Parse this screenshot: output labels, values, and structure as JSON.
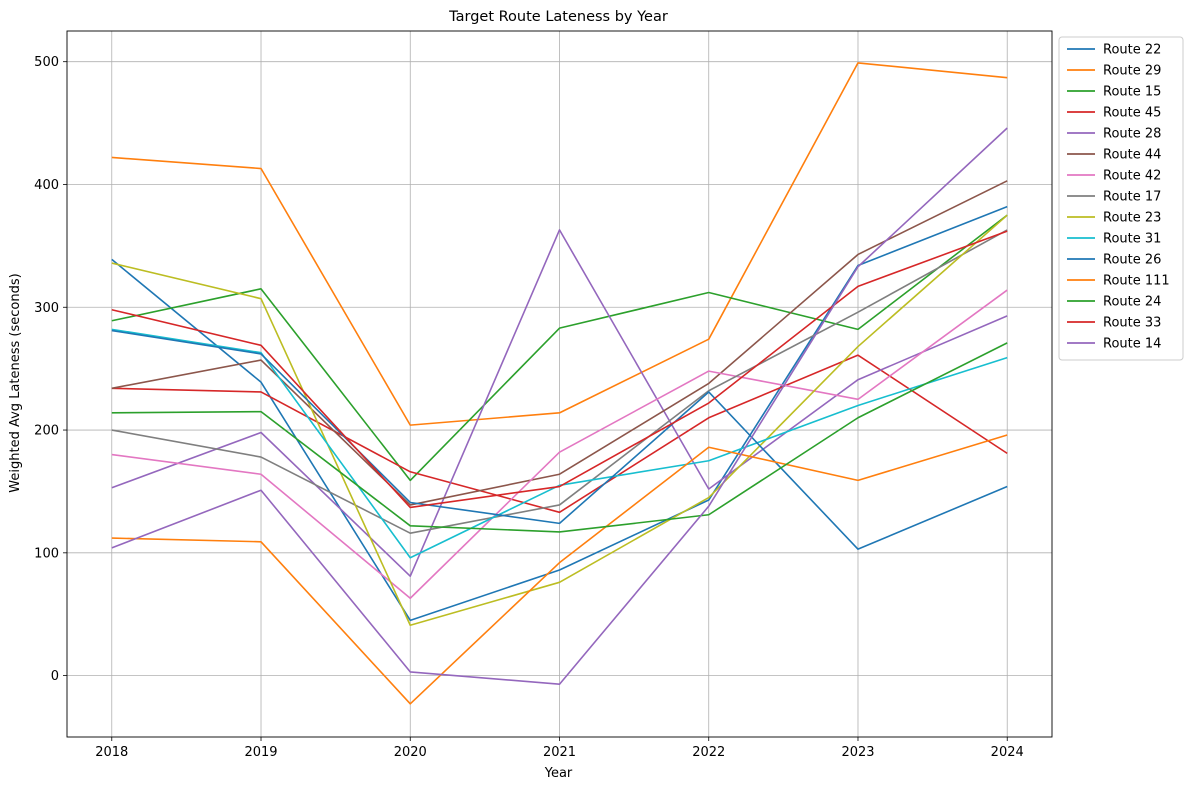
{
  "chart_data": {
    "type": "line",
    "title": "Target Route Lateness by Year",
    "xlabel": "Year",
    "ylabel": "Weighted Avg Lateness (seconds)",
    "x": [
      "2018",
      "2019",
      "2020",
      "2021",
      "2022",
      "2023",
      "2024"
    ],
    "xlim": [
      2017.7,
      2024.3
    ],
    "ylim": [
      -50,
      525
    ],
    "yticks": [
      0,
      100,
      200,
      300,
      400,
      500
    ],
    "grid": true,
    "legend_position": "outside-right-top",
    "series": [
      {
        "name": "Route 22",
        "color": "#1f77b4",
        "values": [
          339,
          239,
          45,
          86,
          143,
          334,
          382
        ]
      },
      {
        "name": "Route 29",
        "color": "#ff7f0e",
        "values": [
          422,
          413,
          204,
          214,
          274,
          499,
          487
        ]
      },
      {
        "name": "Route 15",
        "color": "#2ca02c",
        "values": [
          289,
          315,
          159,
          283,
          312,
          282,
          375
        ]
      },
      {
        "name": "Route 45",
        "color": "#d62728",
        "values": [
          234,
          231,
          166,
          133,
          210,
          261,
          181
        ]
      },
      {
        "name": "Route 28",
        "color": "#9467bd",
        "values": [
          153,
          198,
          81,
          363,
          152,
          241,
          293
        ]
      },
      {
        "name": "Route 44",
        "color": "#8c564b",
        "values": [
          234,
          257,
          139,
          164,
          238,
          343,
          403
        ]
      },
      {
        "name": "Route 42",
        "color": "#e377c2",
        "values": [
          180,
          164,
          63,
          182,
          248,
          225,
          314
        ]
      },
      {
        "name": "Route 17",
        "color": "#7f7f7f",
        "values": [
          200,
          178,
          116,
          139,
          232,
          296,
          363
        ]
      },
      {
        "name": "Route 23",
        "color": "#bcbd22",
        "values": [
          336,
          307,
          41,
          76,
          145,
          268,
          375
        ]
      },
      {
        "name": "Route 31",
        "color": "#17becf",
        "values": [
          282,
          263,
          96,
          155,
          175,
          220,
          259
        ]
      },
      {
        "name": "Route 26",
        "color": "#1f77b4",
        "values": [
          281,
          262,
          141,
          124,
          231,
          103,
          154
        ]
      },
      {
        "name": "Route 111",
        "color": "#ff7f0e",
        "values": [
          112,
          109,
          -23,
          92,
          186,
          159,
          196
        ]
      },
      {
        "name": "Route 24",
        "color": "#2ca02c",
        "values": [
          214,
          215,
          122,
          117,
          131,
          210,
          271
        ]
      },
      {
        "name": "Route 33",
        "color": "#d62728",
        "values": [
          298,
          269,
          137,
          154,
          222,
          317,
          362
        ]
      },
      {
        "name": "Route 14",
        "color": "#9467bd",
        "values": [
          104,
          151,
          3,
          -7,
          138,
          333,
          446
        ]
      }
    ]
  }
}
